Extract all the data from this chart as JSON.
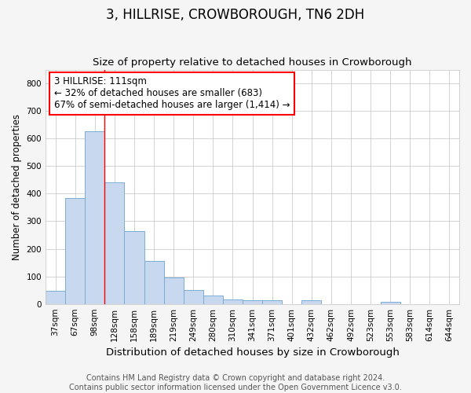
{
  "title": "3, HILLRISE, CROWBOROUGH, TN6 2DH",
  "subtitle": "Size of property relative to detached houses in Crowborough",
  "xlabel": "Distribution of detached houses by size in Crowborough",
  "ylabel": "Number of detached properties",
  "footer_line1": "Contains HM Land Registry data © Crown copyright and database right 2024.",
  "footer_line2": "Contains public sector information licensed under the Open Government Licence v3.0.",
  "categories": [
    "37sqm",
    "67sqm",
    "98sqm",
    "128sqm",
    "158sqm",
    "189sqm",
    "219sqm",
    "249sqm",
    "280sqm",
    "310sqm",
    "341sqm",
    "371sqm",
    "401sqm",
    "432sqm",
    "462sqm",
    "492sqm",
    "523sqm",
    "553sqm",
    "583sqm",
    "614sqm",
    "644sqm"
  ],
  "values": [
    47,
    383,
    625,
    440,
    265,
    157,
    95,
    50,
    30,
    17,
    12,
    12,
    0,
    12,
    0,
    0,
    0,
    7,
    0,
    0,
    0
  ],
  "bar_color": "#c8d8ee",
  "bar_edge_color": "#7aadd4",
  "red_line_x": 2.5,
  "annotation_text": "3 HILLRISE: 111sqm\n← 32% of detached houses are smaller (683)\n67% of semi-detached houses are larger (1,414) →",
  "annotation_box_color": "white",
  "annotation_box_edge_color": "red",
  "ylim": [
    0,
    850
  ],
  "yticks": [
    0,
    100,
    200,
    300,
    400,
    500,
    600,
    700,
    800
  ],
  "background_color": "#f5f5f5",
  "plot_background_color": "white",
  "title_fontsize": 12,
  "subtitle_fontsize": 9.5,
  "xlabel_fontsize": 9.5,
  "ylabel_fontsize": 8.5,
  "tick_fontsize": 7.5,
  "footer_fontsize": 7,
  "annotation_fontsize": 8.5
}
